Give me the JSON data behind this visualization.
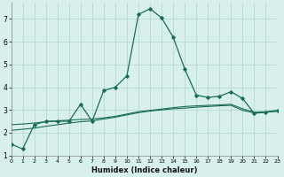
{
  "xlabel": "Humidex (Indice chaleur)",
  "bg_color": "#d8f0ec",
  "grid_color": "#b8d8d4",
  "line_color": "#1a6b5a",
  "xlim": [
    0,
    23
  ],
  "ylim": [
    1,
    7.7
  ],
  "yticks": [
    1,
    2,
    3,
    4,
    5,
    6,
    7
  ],
  "xticks": [
    0,
    1,
    2,
    3,
    4,
    5,
    6,
    7,
    8,
    9,
    10,
    11,
    12,
    13,
    14,
    15,
    16,
    17,
    18,
    19,
    20,
    21,
    22,
    23
  ],
  "line1_x": [
    0,
    1,
    2,
    3,
    4,
    5,
    6,
    7,
    8,
    9,
    10,
    11,
    12,
    13,
    14,
    15,
    16,
    17,
    18,
    19,
    20,
    21,
    22,
    23
  ],
  "line1_y": [
    1.5,
    1.28,
    2.35,
    2.5,
    2.5,
    2.5,
    3.25,
    2.5,
    3.85,
    4.0,
    4.5,
    7.2,
    7.45,
    7.05,
    6.2,
    4.8,
    3.65,
    3.55,
    3.6,
    3.8,
    3.5,
    2.85,
    2.9,
    2.95
  ],
  "line2_x": [
    0,
    1,
    2,
    3,
    4,
    5,
    6,
    7,
    8,
    9,
    10,
    11,
    12,
    13,
    14,
    15,
    16,
    17,
    18,
    19,
    20,
    21,
    22,
    23
  ],
  "line2_y": [
    2.35,
    2.38,
    2.42,
    2.48,
    2.52,
    2.55,
    2.58,
    2.6,
    2.65,
    2.72,
    2.82,
    2.92,
    2.98,
    3.04,
    3.1,
    3.15,
    3.18,
    3.2,
    3.22,
    3.25,
    3.05,
    2.9,
    2.92,
    2.98
  ],
  "line3_x": [
    0,
    1,
    2,
    3,
    4,
    5,
    6,
    7,
    8,
    9,
    10,
    11,
    12,
    13,
    14,
    15,
    16,
    17,
    18,
    19,
    20,
    21,
    22,
    23
  ],
  "line3_y": [
    2.1,
    2.15,
    2.2,
    2.28,
    2.35,
    2.42,
    2.48,
    2.52,
    2.6,
    2.68,
    2.78,
    2.88,
    2.95,
    3.0,
    3.05,
    3.08,
    3.12,
    3.15,
    3.18,
    3.2,
    2.98,
    2.87,
    2.9,
    2.95
  ]
}
